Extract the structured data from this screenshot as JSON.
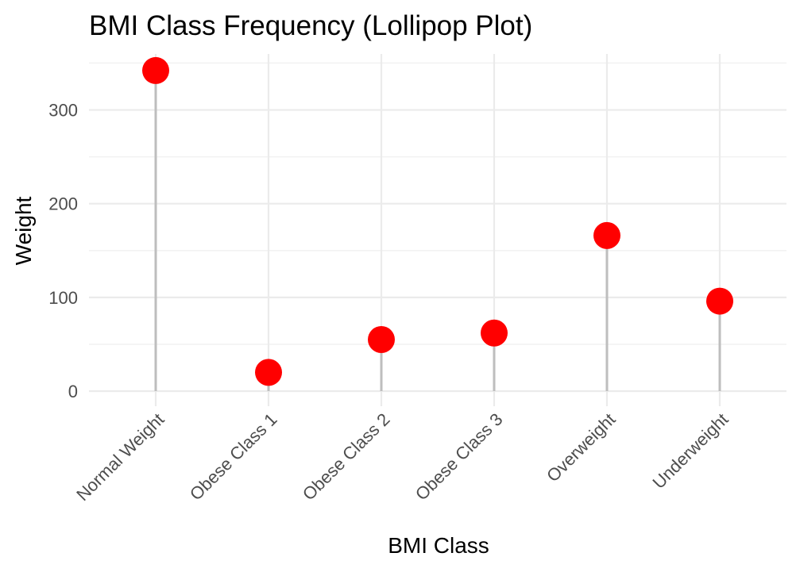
{
  "chart_data": {
    "type": "lollipop",
    "title": "BMI Class Frequency (Lollipop Plot)",
    "xlabel": "BMI Class",
    "ylabel": "Weight",
    "categories": [
      "Normal Weight",
      "Obese Class 1",
      "Obese Class 2",
      "Obese Class 3",
      "Overweight",
      "Underweight"
    ],
    "values": [
      342,
      20,
      55,
      62,
      166,
      96
    ],
    "y_ticks": [
      0,
      100,
      200,
      300
    ],
    "ylim": [
      -20,
      360
    ],
    "point_color": "#ff0000",
    "stem_color": "#bebebe",
    "grid": true,
    "legend": "none"
  }
}
